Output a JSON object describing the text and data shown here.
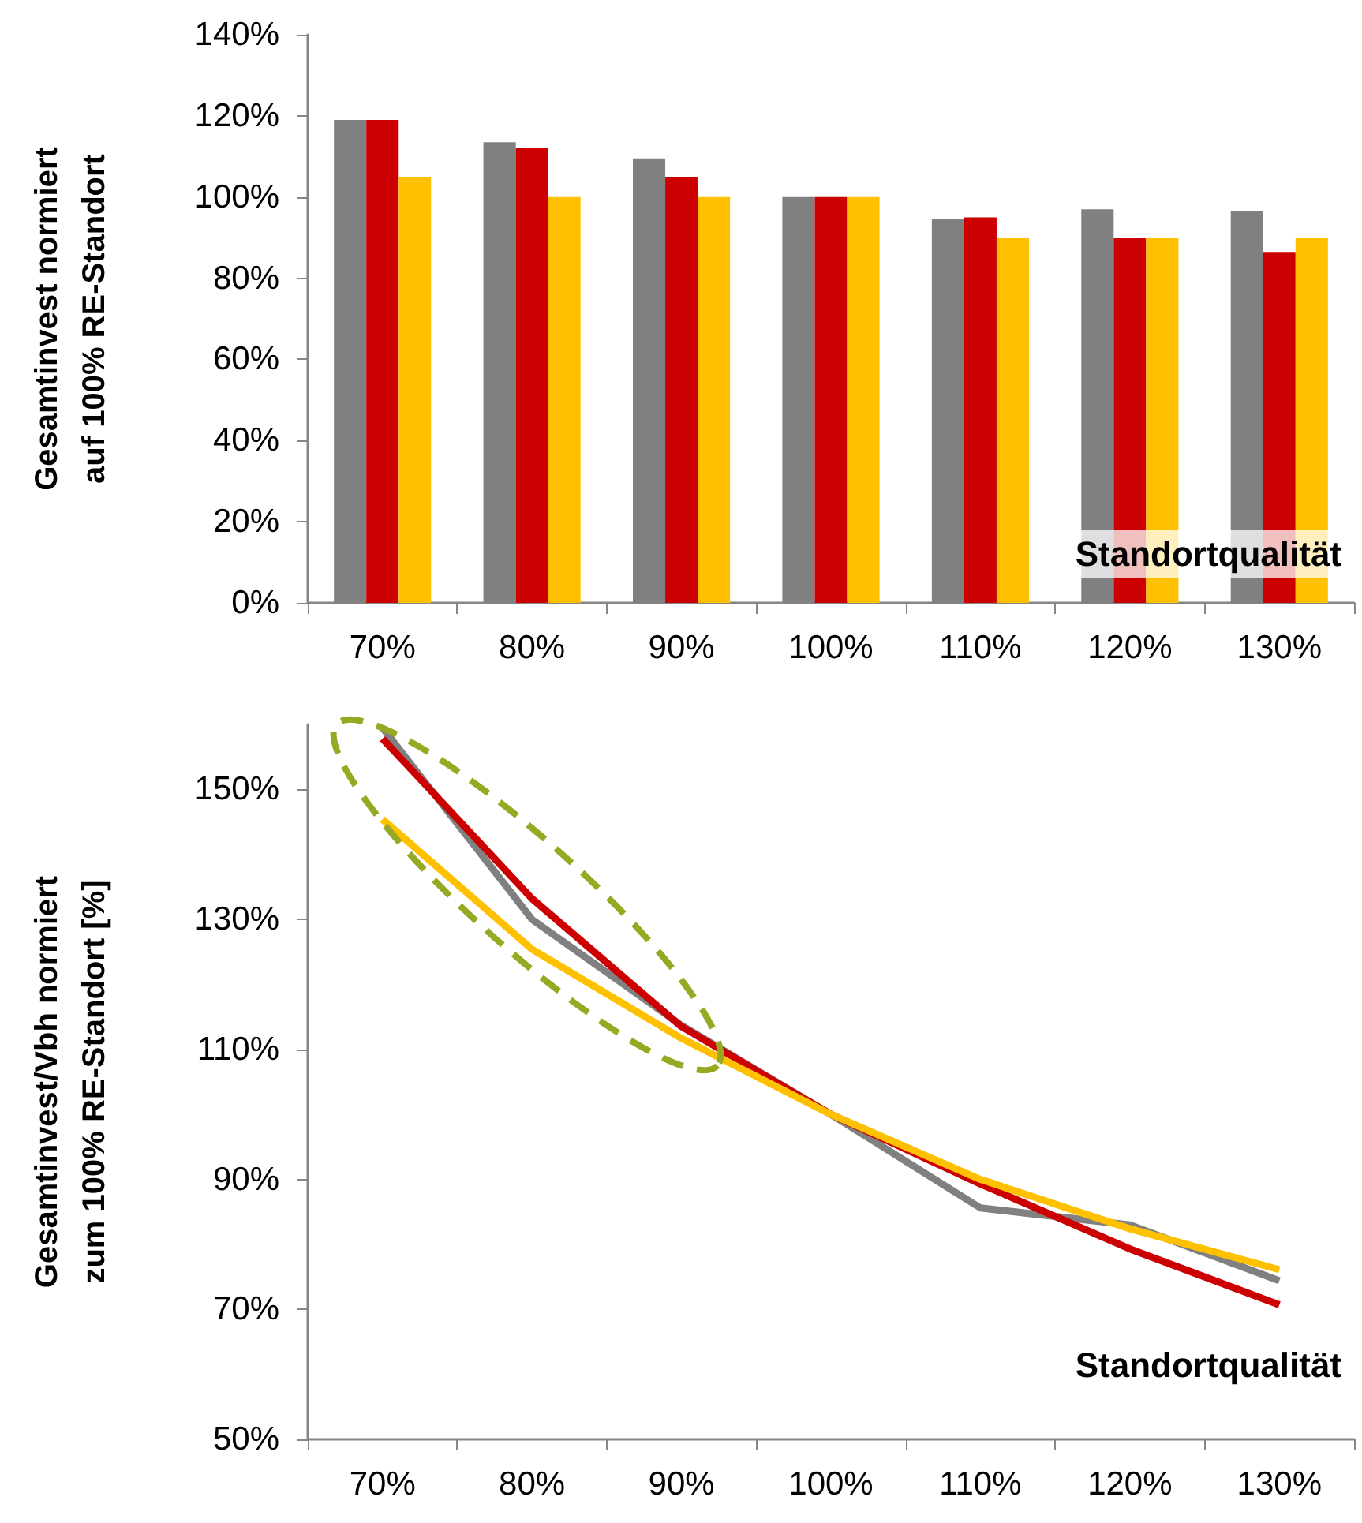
{
  "chart_data": [
    {
      "type": "bar",
      "ylabel": "Gesamtinvest normiert\nauf 100% RE-Standort",
      "xlabel": "Standortqualität",
      "categories": [
        "70%",
        "80%",
        "90%",
        "100%",
        "110%",
        "120%",
        "130%"
      ],
      "series": [
        {
          "color": "#808080",
          "values": [
            119,
            113.5,
            109.5,
            100,
            94.5,
            97,
            96.5
          ]
        },
        {
          "color": "#cc0000",
          "values": [
            119,
            112,
            105,
            100,
            95,
            90,
            86.5
          ]
        },
        {
          "color": "#ffc000",
          "values": [
            105,
            100,
            100,
            100,
            90,
            90,
            90
          ]
        }
      ],
      "ylim": [
        0,
        140
      ],
      "yticks": [
        {
          "value": 0,
          "label": "0%"
        },
        {
          "value": 20,
          "label": "20%"
        },
        {
          "value": 40,
          "label": "40%"
        },
        {
          "value": 60,
          "label": "60%"
        },
        {
          "value": 80,
          "label": "80%"
        },
        {
          "value": 100,
          "label": "100%"
        },
        {
          "value": 120,
          "label": "120%"
        },
        {
          "value": 140,
          "label": "140%"
        }
      ],
      "grid": false
    },
    {
      "type": "line",
      "ylabel": "Gesamtinvest/Vbh normiert\nzum 100% RE-Standort [%]",
      "xlabel": "Standortqualität",
      "categories": [
        "70%",
        "80%",
        "90%",
        "100%",
        "110%",
        "120%",
        "130%"
      ],
      "series": [
        {
          "color": "#808080",
          "values": [
            159.5,
            130,
            113.7,
            100,
            85.6,
            83,
            74.4
          ]
        },
        {
          "color": "#cc0000",
          "values": [
            157.8,
            133.2,
            113.5,
            100,
            89.3,
            79.3,
            70.7
          ]
        },
        {
          "color": "#ffc000",
          "values": [
            145.4,
            125.4,
            111.7,
            100,
            90,
            82.4,
            76.1
          ]
        }
      ],
      "ylim": [
        50,
        160
      ],
      "yticks": [
        {
          "value": 50,
          "label": "50%"
        },
        {
          "value": 70,
          "label": "70%"
        },
        {
          "value": 90,
          "label": "90%"
        },
        {
          "value": 110,
          "label": "110%"
        },
        {
          "value": 130,
          "label": "130%"
        },
        {
          "value": 150,
          "label": "150%"
        }
      ],
      "grid": false,
      "marker": "none"
    }
  ]
}
